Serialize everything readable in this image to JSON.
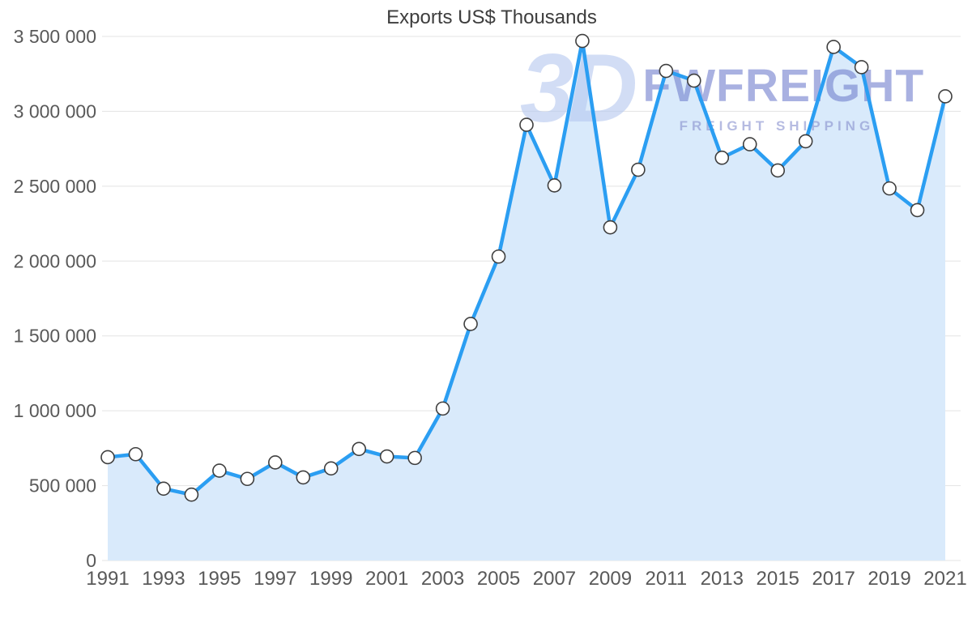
{
  "chart_data": {
    "type": "area",
    "title": "Exports US$ Thousands",
    "x": [
      1991,
      1992,
      1993,
      1994,
      1995,
      1996,
      1997,
      1998,
      1999,
      2000,
      2001,
      2002,
      2003,
      2004,
      2005,
      2006,
      2007,
      2008,
      2009,
      2010,
      2011,
      2012,
      2013,
      2014,
      2015,
      2016,
      2017,
      2018,
      2019,
      2020,
      2021
    ],
    "values": [
      690000,
      710000,
      480000,
      440000,
      600000,
      545000,
      655000,
      555000,
      615000,
      745000,
      695000,
      685000,
      1015000,
      1580000,
      2030000,
      2910000,
      2505000,
      3470000,
      2225000,
      2610000,
      3270000,
      3205000,
      2690000,
      2780000,
      2605000,
      2800000,
      3430000,
      3295000,
      2485000,
      2340000,
      3100000
    ],
    "series_name": "Exports",
    "xlabel": "",
    "ylabel": "",
    "ylim": [
      0,
      3500000
    ],
    "yticks": [
      0,
      500000,
      1000000,
      1500000,
      2000000,
      2500000,
      3000000,
      3500000
    ],
    "ytick_labels": [
      "0",
      "500 000",
      "1 000 000",
      "1 500 000",
      "2 000 000",
      "2 500 000",
      "3 000 000",
      "3 500 000"
    ],
    "xtick_labels": [
      "1991",
      "1993",
      "1995",
      "1997",
      "1999",
      "2001",
      "2003",
      "2005",
      "2007",
      "2009",
      "2011",
      "2013",
      "2015",
      "2017",
      "2019",
      "2021"
    ],
    "grid": "horizontal",
    "legend": "none",
    "colors": {
      "line": "#2b9ef2",
      "area": "#d9eafb",
      "marker_fill": "#ffffff",
      "marker_stroke": "#3f3f3f",
      "grid": "#e3e3e3",
      "axis_text": "#595959",
      "title_text": "#3d3d3d"
    }
  },
  "watermark": {
    "logo": "3D",
    "brand": "FWFREIGHT",
    "tagline": "FREIGHT SHIPPING"
  }
}
